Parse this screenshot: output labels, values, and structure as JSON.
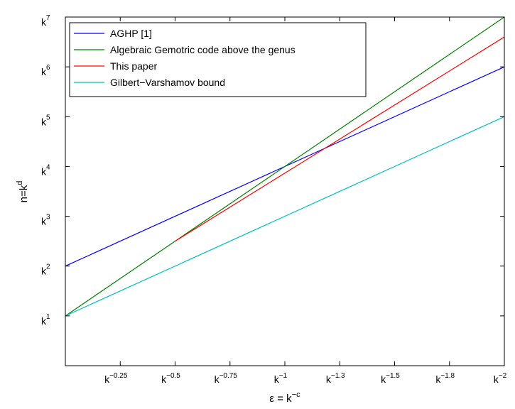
{
  "chart_data": {
    "type": "line",
    "xlabel": {
      "base": "ε = k",
      "exp": "−c"
    },
    "ylabel": {
      "base": "n=k",
      "exp": "d"
    },
    "xlim": [
      0,
      2
    ],
    "ylim": [
      0,
      7
    ],
    "x_ticks": [
      {
        "value": 0.25,
        "base": "k",
        "exp": "−0.25"
      },
      {
        "value": 0.5,
        "base": "k",
        "exp": "−0.5"
      },
      {
        "value": 0.75,
        "base": "k",
        "exp": "−0.75"
      },
      {
        "value": 1.0,
        "base": "k",
        "exp": "−1"
      },
      {
        "value": 1.25,
        "base": "k",
        "exp": "−1.3"
      },
      {
        "value": 1.5,
        "base": "k",
        "exp": "−1.5"
      },
      {
        "value": 1.75,
        "base": "k",
        "exp": "−1.8"
      },
      {
        "value": 2.0,
        "base": "k",
        "exp": "−2"
      }
    ],
    "y_ticks": [
      {
        "value": 1,
        "base": "k",
        "exp": "1"
      },
      {
        "value": 2,
        "base": "k",
        "exp": "2"
      },
      {
        "value": 3,
        "base": "k",
        "exp": "3"
      },
      {
        "value": 4,
        "base": "k",
        "exp": "4"
      },
      {
        "value": 5,
        "base": "k",
        "exp": "5"
      },
      {
        "value": 6,
        "base": "k",
        "exp": "6"
      },
      {
        "value": 7,
        "base": "k",
        "exp": "7"
      }
    ],
    "legend_position": "top-left",
    "grid": false,
    "series": [
      {
        "name": "AGHP [1]",
        "color": "#0000ff",
        "points": [
          [
            0,
            2
          ],
          [
            2,
            6
          ]
        ]
      },
      {
        "name": "Algebraic Gemotric code above the genus",
        "color": "#008000",
        "points": [
          [
            0,
            1
          ],
          [
            2,
            7
          ]
        ]
      },
      {
        "name": "This paper",
        "color": "#ff0000",
        "points": [
          [
            0.5,
            2.5
          ],
          [
            2,
            6.6
          ]
        ]
      },
      {
        "name": "Gilbert−Varshamov bound",
        "color": "#00bfbf",
        "points": [
          [
            0,
            1
          ],
          [
            2,
            5
          ]
        ]
      }
    ]
  }
}
